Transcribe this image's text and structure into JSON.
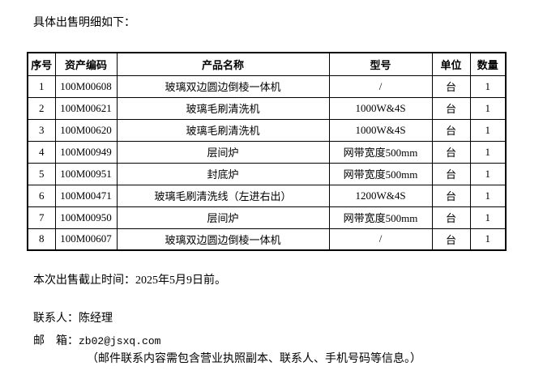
{
  "page": {
    "intro": "具体出售明细如下：",
    "deadline": "本次出售截止时间：2025年5月9日前。",
    "contact": "联系人：陈经理",
    "email_label": "邮　箱：",
    "email": "zb02@jsxq.com",
    "email_note": "（邮件联系内容需包含营业执照副本、联系人、手机号码等信息。）"
  },
  "table": {
    "headers": [
      "序号",
      "资产编码",
      "产品名称",
      "型号",
      "单位",
      "数量"
    ],
    "rows": [
      [
        "1",
        "100M00608",
        "玻璃双边圆边倒棱一体机",
        "/",
        "台",
        "1"
      ],
      [
        "2",
        "100M00621",
        "玻璃毛刷清洗机",
        "1000W&4S",
        "台",
        "1"
      ],
      [
        "3",
        "100M00620",
        "玻璃毛刷清洗机",
        "1000W&4S",
        "台",
        "1"
      ],
      [
        "4",
        "100M00949",
        "层间炉",
        "网带宽度500mm",
        "台",
        "1"
      ],
      [
        "5",
        "100M00951",
        "封底炉",
        "网带宽度500mm",
        "台",
        "1"
      ],
      [
        "6",
        "100M00471",
        "玻璃毛刷清洗线（左进右出）",
        "1200W&4S",
        "台",
        "1"
      ],
      [
        "7",
        "100M00950",
        "层间炉",
        "网带宽度500mm",
        "台",
        "1"
      ],
      [
        "8",
        "100M00607",
        "玻璃双边圆边倒棱一体机",
        "/",
        "台",
        "1"
      ]
    ]
  }
}
